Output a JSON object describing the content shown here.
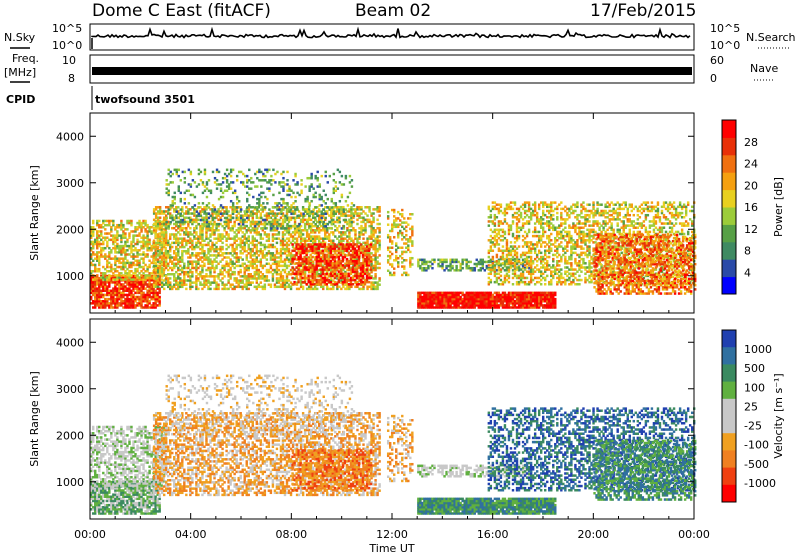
{
  "header": {
    "station": "Dome C East (fitACF)",
    "beam": "Beam 02",
    "date": "17/Feb/2015"
  },
  "noise_panel": {
    "left_label": "N.Sky",
    "right_label": "N.Search",
    "top_tick": "10^5",
    "bottom_tick": "10^0"
  },
  "freq_panel": {
    "left_label_line1": "Freq.",
    "left_label_line2": "[MHz]",
    "left_top_tick": "10",
    "left_bottom_tick": "8",
    "right_label": "Nave",
    "right_top_tick": "60",
    "right_bottom_tick": "0"
  },
  "cpid": {
    "label": "CPID",
    "value": "twofsound 3501"
  },
  "x_axis": {
    "title": "Time UT",
    "ticks": [
      "00:00",
      "04:00",
      "08:00",
      "12:00",
      "16:00",
      "20:00",
      "00:00"
    ]
  },
  "colors": {
    "power_scale": [
      "#0000ff",
      "#2a4aa8",
      "#3f8a62",
      "#57a046",
      "#9ccc3a",
      "#e8d020",
      "#f5a010",
      "#f07010",
      "#e83008",
      "#ff0000"
    ],
    "velocity_scale": [
      "#2040b0",
      "#3070a0",
      "#3a8a60",
      "#60b040",
      "#c8c8c8",
      "#c8c8c8",
      "#f0a020",
      "#f08020",
      "#f04010",
      "#ff0000"
    ]
  },
  "chart_data": [
    {
      "type": "heatmap",
      "name": "power",
      "ylabel": "Slant Range [km]",
      "y_ticks": [
        "1000",
        "2000",
        "3000",
        "4000"
      ],
      "ylim": [
        200,
        4500
      ],
      "xlim": [
        0,
        24
      ],
      "colorbar_label": "Power [dB]",
      "colorbar_ticks": [
        "4",
        "8",
        "12",
        "16",
        "20",
        "24",
        "28"
      ],
      "colorbar_range": [
        0,
        30
      ]
    },
    {
      "type": "heatmap",
      "name": "velocity",
      "ylabel": "Slant Range [km]",
      "y_ticks": [
        "1000",
        "2000",
        "3000",
        "4000"
      ],
      "ylim": [
        200,
        4500
      ],
      "xlim": [
        0,
        24
      ],
      "colorbar_label": "Velocity [m s⁻¹]",
      "colorbar_ticks": [
        "1000",
        "500",
        "100",
        "25",
        "-25",
        "-100",
        "-500",
        "-1000"
      ]
    }
  ]
}
